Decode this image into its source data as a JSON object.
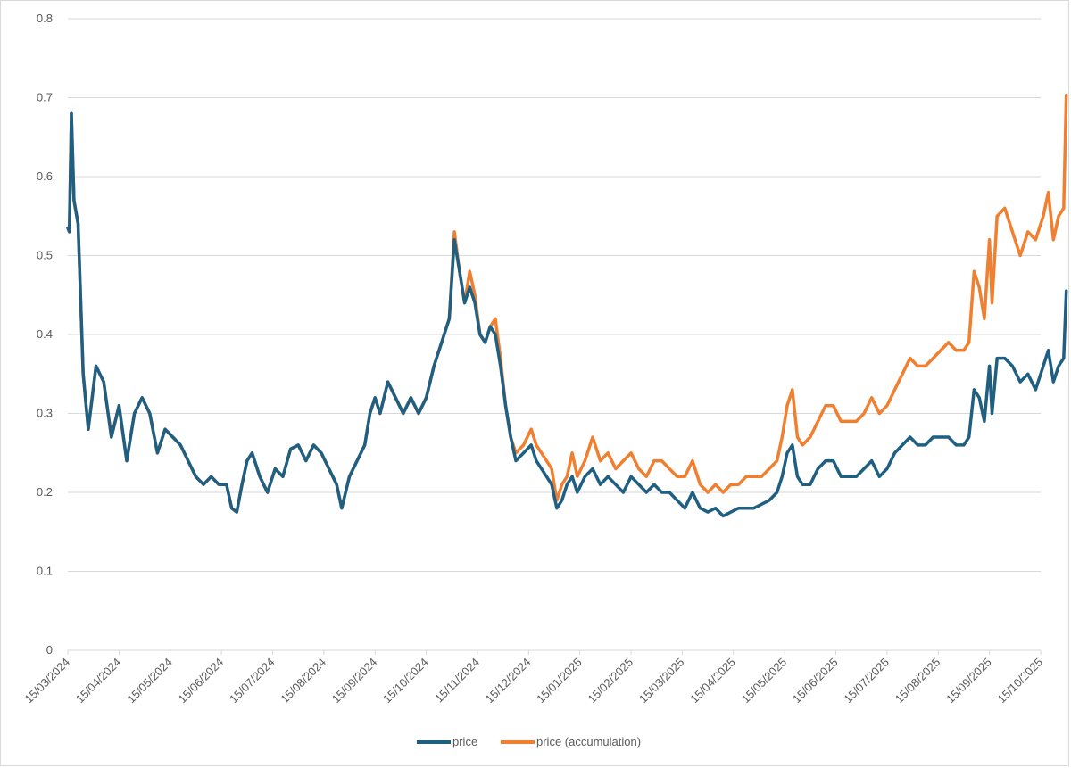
{
  "chart_data": {
    "type": "line",
    "title": "",
    "xlabel": "",
    "ylabel": "",
    "ylim": [
      0,
      0.8
    ],
    "y_ticks": [
      "0",
      "0.1",
      "0.2",
      "0.3",
      "0.4",
      "0.5",
      "0.6",
      "0.7",
      "0.8"
    ],
    "x_ticks": [
      "15/03/2024",
      "15/04/2024",
      "15/05/2024",
      "15/06/2024",
      "15/07/2024",
      "15/08/2024",
      "15/09/2024",
      "15/10/2024",
      "15/11/2024",
      "15/12/2024",
      "15/01/2025",
      "15/02/2025",
      "15/03/2025",
      "15/04/2025",
      "15/05/2025",
      "15/06/2025",
      "15/07/2025",
      "15/08/2025",
      "15/09/2025",
      "15/10/2025"
    ],
    "grid": true,
    "legend_position": "bottom",
    "x_unit": "months since 15/03/2024",
    "series": [
      {
        "name": "price",
        "color": "#1f5f82",
        "points": [
          [
            0,
            0.535
          ],
          [
            0.03,
            0.53
          ],
          [
            0.07,
            0.68
          ],
          [
            0.12,
            0.57
          ],
          [
            0.2,
            0.54
          ],
          [
            0.3,
            0.35
          ],
          [
            0.4,
            0.28
          ],
          [
            0.55,
            0.36
          ],
          [
            0.7,
            0.34
          ],
          [
            0.85,
            0.27
          ],
          [
            1.0,
            0.31
          ],
          [
            1.15,
            0.24
          ],
          [
            1.3,
            0.3
          ],
          [
            1.45,
            0.32
          ],
          [
            1.6,
            0.3
          ],
          [
            1.75,
            0.25
          ],
          [
            1.9,
            0.28
          ],
          [
            2.05,
            0.27
          ],
          [
            2.2,
            0.26
          ],
          [
            2.35,
            0.24
          ],
          [
            2.5,
            0.22
          ],
          [
            2.65,
            0.21
          ],
          [
            2.8,
            0.22
          ],
          [
            2.95,
            0.21
          ],
          [
            3.1,
            0.21
          ],
          [
            3.2,
            0.18
          ],
          [
            3.3,
            0.175
          ],
          [
            3.4,
            0.21
          ],
          [
            3.5,
            0.24
          ],
          [
            3.6,
            0.25
          ],
          [
            3.75,
            0.22
          ],
          [
            3.9,
            0.2
          ],
          [
            4.05,
            0.23
          ],
          [
            4.2,
            0.22
          ],
          [
            4.35,
            0.255
          ],
          [
            4.5,
            0.26
          ],
          [
            4.65,
            0.24
          ],
          [
            4.8,
            0.26
          ],
          [
            4.95,
            0.25
          ],
          [
            5.1,
            0.23
          ],
          [
            5.25,
            0.21
          ],
          [
            5.35,
            0.18
          ],
          [
            5.5,
            0.22
          ],
          [
            5.65,
            0.24
          ],
          [
            5.8,
            0.26
          ],
          [
            5.9,
            0.3
          ],
          [
            6.0,
            0.32
          ],
          [
            6.1,
            0.3
          ],
          [
            6.25,
            0.34
          ],
          [
            6.4,
            0.32
          ],
          [
            6.55,
            0.3
          ],
          [
            6.7,
            0.32
          ],
          [
            6.85,
            0.3
          ],
          [
            7.0,
            0.32
          ],
          [
            7.15,
            0.36
          ],
          [
            7.3,
            0.39
          ],
          [
            7.45,
            0.42
          ],
          [
            7.55,
            0.52
          ],
          [
            7.65,
            0.48
          ],
          [
            7.75,
            0.44
          ],
          [
            7.85,
            0.46
          ],
          [
            7.95,
            0.44
          ],
          [
            8.05,
            0.4
          ],
          [
            8.15,
            0.39
          ],
          [
            8.25,
            0.41
          ],
          [
            8.35,
            0.4
          ],
          [
            8.45,
            0.36
          ],
          [
            8.55,
            0.31
          ],
          [
            8.65,
            0.27
          ],
          [
            8.75,
            0.24
          ],
          [
            8.9,
            0.25
          ],
          [
            9.05,
            0.26
          ],
          [
            9.15,
            0.24
          ],
          [
            9.25,
            0.23
          ],
          [
            9.35,
            0.22
          ],
          [
            9.45,
            0.21
          ],
          [
            9.55,
            0.18
          ],
          [
            9.65,
            0.19
          ],
          [
            9.75,
            0.21
          ],
          [
            9.85,
            0.22
          ],
          [
            9.95,
            0.2
          ],
          [
            10.1,
            0.22
          ],
          [
            10.25,
            0.23
          ],
          [
            10.4,
            0.21
          ],
          [
            10.55,
            0.22
          ],
          [
            10.7,
            0.21
          ],
          [
            10.85,
            0.2
          ],
          [
            11.0,
            0.22
          ],
          [
            11.15,
            0.21
          ],
          [
            11.3,
            0.2
          ],
          [
            11.45,
            0.21
          ],
          [
            11.6,
            0.2
          ],
          [
            11.75,
            0.2
          ],
          [
            11.9,
            0.19
          ],
          [
            12.05,
            0.18
          ],
          [
            12.2,
            0.2
          ],
          [
            12.35,
            0.18
          ],
          [
            12.5,
            0.175
          ],
          [
            12.65,
            0.18
          ],
          [
            12.8,
            0.17
          ],
          [
            12.95,
            0.175
          ],
          [
            13.1,
            0.18
          ],
          [
            13.25,
            0.18
          ],
          [
            13.4,
            0.18
          ],
          [
            13.55,
            0.185
          ],
          [
            13.7,
            0.19
          ],
          [
            13.85,
            0.2
          ],
          [
            13.95,
            0.22
          ],
          [
            14.05,
            0.25
          ],
          [
            14.15,
            0.26
          ],
          [
            14.25,
            0.22
          ],
          [
            14.35,
            0.21
          ],
          [
            14.5,
            0.21
          ],
          [
            14.65,
            0.23
          ],
          [
            14.8,
            0.24
          ],
          [
            14.95,
            0.24
          ],
          [
            15.1,
            0.22
          ],
          [
            15.25,
            0.22
          ],
          [
            15.4,
            0.22
          ],
          [
            15.55,
            0.23
          ],
          [
            15.7,
            0.24
          ],
          [
            15.85,
            0.22
          ],
          [
            16.0,
            0.23
          ],
          [
            16.15,
            0.25
          ],
          [
            16.3,
            0.26
          ],
          [
            16.45,
            0.27
          ],
          [
            16.6,
            0.26
          ],
          [
            16.75,
            0.26
          ],
          [
            16.9,
            0.27
          ],
          [
            17.05,
            0.27
          ],
          [
            17.2,
            0.27
          ],
          [
            17.35,
            0.26
          ],
          [
            17.5,
            0.26
          ],
          [
            17.6,
            0.27
          ],
          [
            17.7,
            0.33
          ],
          [
            17.8,
            0.32
          ],
          [
            17.9,
            0.29
          ],
          [
            18.0,
            0.36
          ],
          [
            18.05,
            0.3
          ],
          [
            18.15,
            0.37
          ],
          [
            18.3,
            0.37
          ],
          [
            18.45,
            0.36
          ],
          [
            18.6,
            0.34
          ],
          [
            18.75,
            0.35
          ],
          [
            18.9,
            0.33
          ],
          [
            19.05,
            0.36
          ],
          [
            19.15,
            0.38
          ],
          [
            19.25,
            0.34
          ],
          [
            19.35,
            0.36
          ],
          [
            19.45,
            0.37
          ],
          [
            19.5,
            0.455
          ]
        ]
      },
      {
        "name": "price (accumulation)",
        "color": "#f07f30",
        "points": [
          [
            0,
            0.535
          ],
          [
            0.03,
            0.53
          ],
          [
            0.07,
            0.68
          ],
          [
            0.12,
            0.57
          ],
          [
            0.2,
            0.54
          ],
          [
            0.3,
            0.35
          ],
          [
            0.4,
            0.28
          ],
          [
            0.55,
            0.36
          ],
          [
            0.7,
            0.34
          ],
          [
            0.85,
            0.27
          ],
          [
            1.0,
            0.31
          ],
          [
            1.15,
            0.24
          ],
          [
            1.3,
            0.3
          ],
          [
            1.45,
            0.32
          ],
          [
            1.6,
            0.3
          ],
          [
            1.75,
            0.25
          ],
          [
            1.9,
            0.28
          ],
          [
            2.05,
            0.27
          ],
          [
            2.2,
            0.26
          ],
          [
            2.35,
            0.24
          ],
          [
            2.5,
            0.22
          ],
          [
            2.65,
            0.21
          ],
          [
            2.8,
            0.22
          ],
          [
            2.95,
            0.21
          ],
          [
            3.1,
            0.21
          ],
          [
            3.2,
            0.18
          ],
          [
            3.3,
            0.175
          ],
          [
            3.4,
            0.21
          ],
          [
            3.5,
            0.24
          ],
          [
            3.6,
            0.25
          ],
          [
            3.75,
            0.22
          ],
          [
            3.9,
            0.2
          ],
          [
            4.05,
            0.23
          ],
          [
            4.2,
            0.22
          ],
          [
            4.35,
            0.255
          ],
          [
            4.5,
            0.26
          ],
          [
            4.65,
            0.24
          ],
          [
            4.8,
            0.26
          ],
          [
            4.95,
            0.25
          ],
          [
            5.1,
            0.23
          ],
          [
            5.25,
            0.21
          ],
          [
            5.35,
            0.18
          ],
          [
            5.5,
            0.22
          ],
          [
            5.65,
            0.24
          ],
          [
            5.8,
            0.26
          ],
          [
            5.9,
            0.3
          ],
          [
            6.0,
            0.32
          ],
          [
            6.1,
            0.3
          ],
          [
            6.25,
            0.34
          ],
          [
            6.4,
            0.32
          ],
          [
            6.55,
            0.3
          ],
          [
            6.7,
            0.32
          ],
          [
            6.85,
            0.3
          ],
          [
            7.0,
            0.32
          ],
          [
            7.15,
            0.36
          ],
          [
            7.3,
            0.39
          ],
          [
            7.45,
            0.42
          ],
          [
            7.55,
            0.53
          ],
          [
            7.65,
            0.48
          ],
          [
            7.75,
            0.44
          ],
          [
            7.85,
            0.48
          ],
          [
            7.95,
            0.45
          ],
          [
            8.05,
            0.4
          ],
          [
            8.15,
            0.39
          ],
          [
            8.25,
            0.41
          ],
          [
            8.35,
            0.42
          ],
          [
            8.45,
            0.37
          ],
          [
            8.55,
            0.31
          ],
          [
            8.65,
            0.27
          ],
          [
            8.75,
            0.25
          ],
          [
            8.9,
            0.26
          ],
          [
            9.05,
            0.28
          ],
          [
            9.15,
            0.26
          ],
          [
            9.25,
            0.25
          ],
          [
            9.35,
            0.24
          ],
          [
            9.45,
            0.23
          ],
          [
            9.55,
            0.19
          ],
          [
            9.65,
            0.21
          ],
          [
            9.75,
            0.22
          ],
          [
            9.85,
            0.25
          ],
          [
            9.95,
            0.22
          ],
          [
            10.1,
            0.24
          ],
          [
            10.25,
            0.27
          ],
          [
            10.4,
            0.24
          ],
          [
            10.55,
            0.25
          ],
          [
            10.7,
            0.23
          ],
          [
            10.85,
            0.24
          ],
          [
            11.0,
            0.25
          ],
          [
            11.15,
            0.23
          ],
          [
            11.3,
            0.22
          ],
          [
            11.45,
            0.24
          ],
          [
            11.6,
            0.24
          ],
          [
            11.75,
            0.23
          ],
          [
            11.9,
            0.22
          ],
          [
            12.05,
            0.22
          ],
          [
            12.2,
            0.24
          ],
          [
            12.35,
            0.21
          ],
          [
            12.5,
            0.2
          ],
          [
            12.65,
            0.21
          ],
          [
            12.8,
            0.2
          ],
          [
            12.95,
            0.21
          ],
          [
            13.1,
            0.21
          ],
          [
            13.25,
            0.22
          ],
          [
            13.4,
            0.22
          ],
          [
            13.55,
            0.22
          ],
          [
            13.7,
            0.23
          ],
          [
            13.85,
            0.24
          ],
          [
            13.95,
            0.27
          ],
          [
            14.05,
            0.31
          ],
          [
            14.15,
            0.33
          ],
          [
            14.25,
            0.27
          ],
          [
            14.35,
            0.26
          ],
          [
            14.5,
            0.27
          ],
          [
            14.65,
            0.29
          ],
          [
            14.8,
            0.31
          ],
          [
            14.95,
            0.31
          ],
          [
            15.1,
            0.29
          ],
          [
            15.25,
            0.29
          ],
          [
            15.4,
            0.29
          ],
          [
            15.55,
            0.3
          ],
          [
            15.7,
            0.32
          ],
          [
            15.85,
            0.3
          ],
          [
            16.0,
            0.31
          ],
          [
            16.15,
            0.33
          ],
          [
            16.3,
            0.35
          ],
          [
            16.45,
            0.37
          ],
          [
            16.6,
            0.36
          ],
          [
            16.75,
            0.36
          ],
          [
            16.9,
            0.37
          ],
          [
            17.05,
            0.38
          ],
          [
            17.2,
            0.39
          ],
          [
            17.35,
            0.38
          ],
          [
            17.5,
            0.38
          ],
          [
            17.6,
            0.39
          ],
          [
            17.7,
            0.48
          ],
          [
            17.8,
            0.46
          ],
          [
            17.9,
            0.42
          ],
          [
            18.0,
            0.52
          ],
          [
            18.05,
            0.44
          ],
          [
            18.15,
            0.55
          ],
          [
            18.3,
            0.56
          ],
          [
            18.45,
            0.53
          ],
          [
            18.6,
            0.5
          ],
          [
            18.75,
            0.53
          ],
          [
            18.9,
            0.52
          ],
          [
            19.05,
            0.55
          ],
          [
            19.15,
            0.58
          ],
          [
            19.25,
            0.52
          ],
          [
            19.35,
            0.55
          ],
          [
            19.45,
            0.56
          ],
          [
            19.5,
            0.703
          ]
        ]
      }
    ]
  }
}
